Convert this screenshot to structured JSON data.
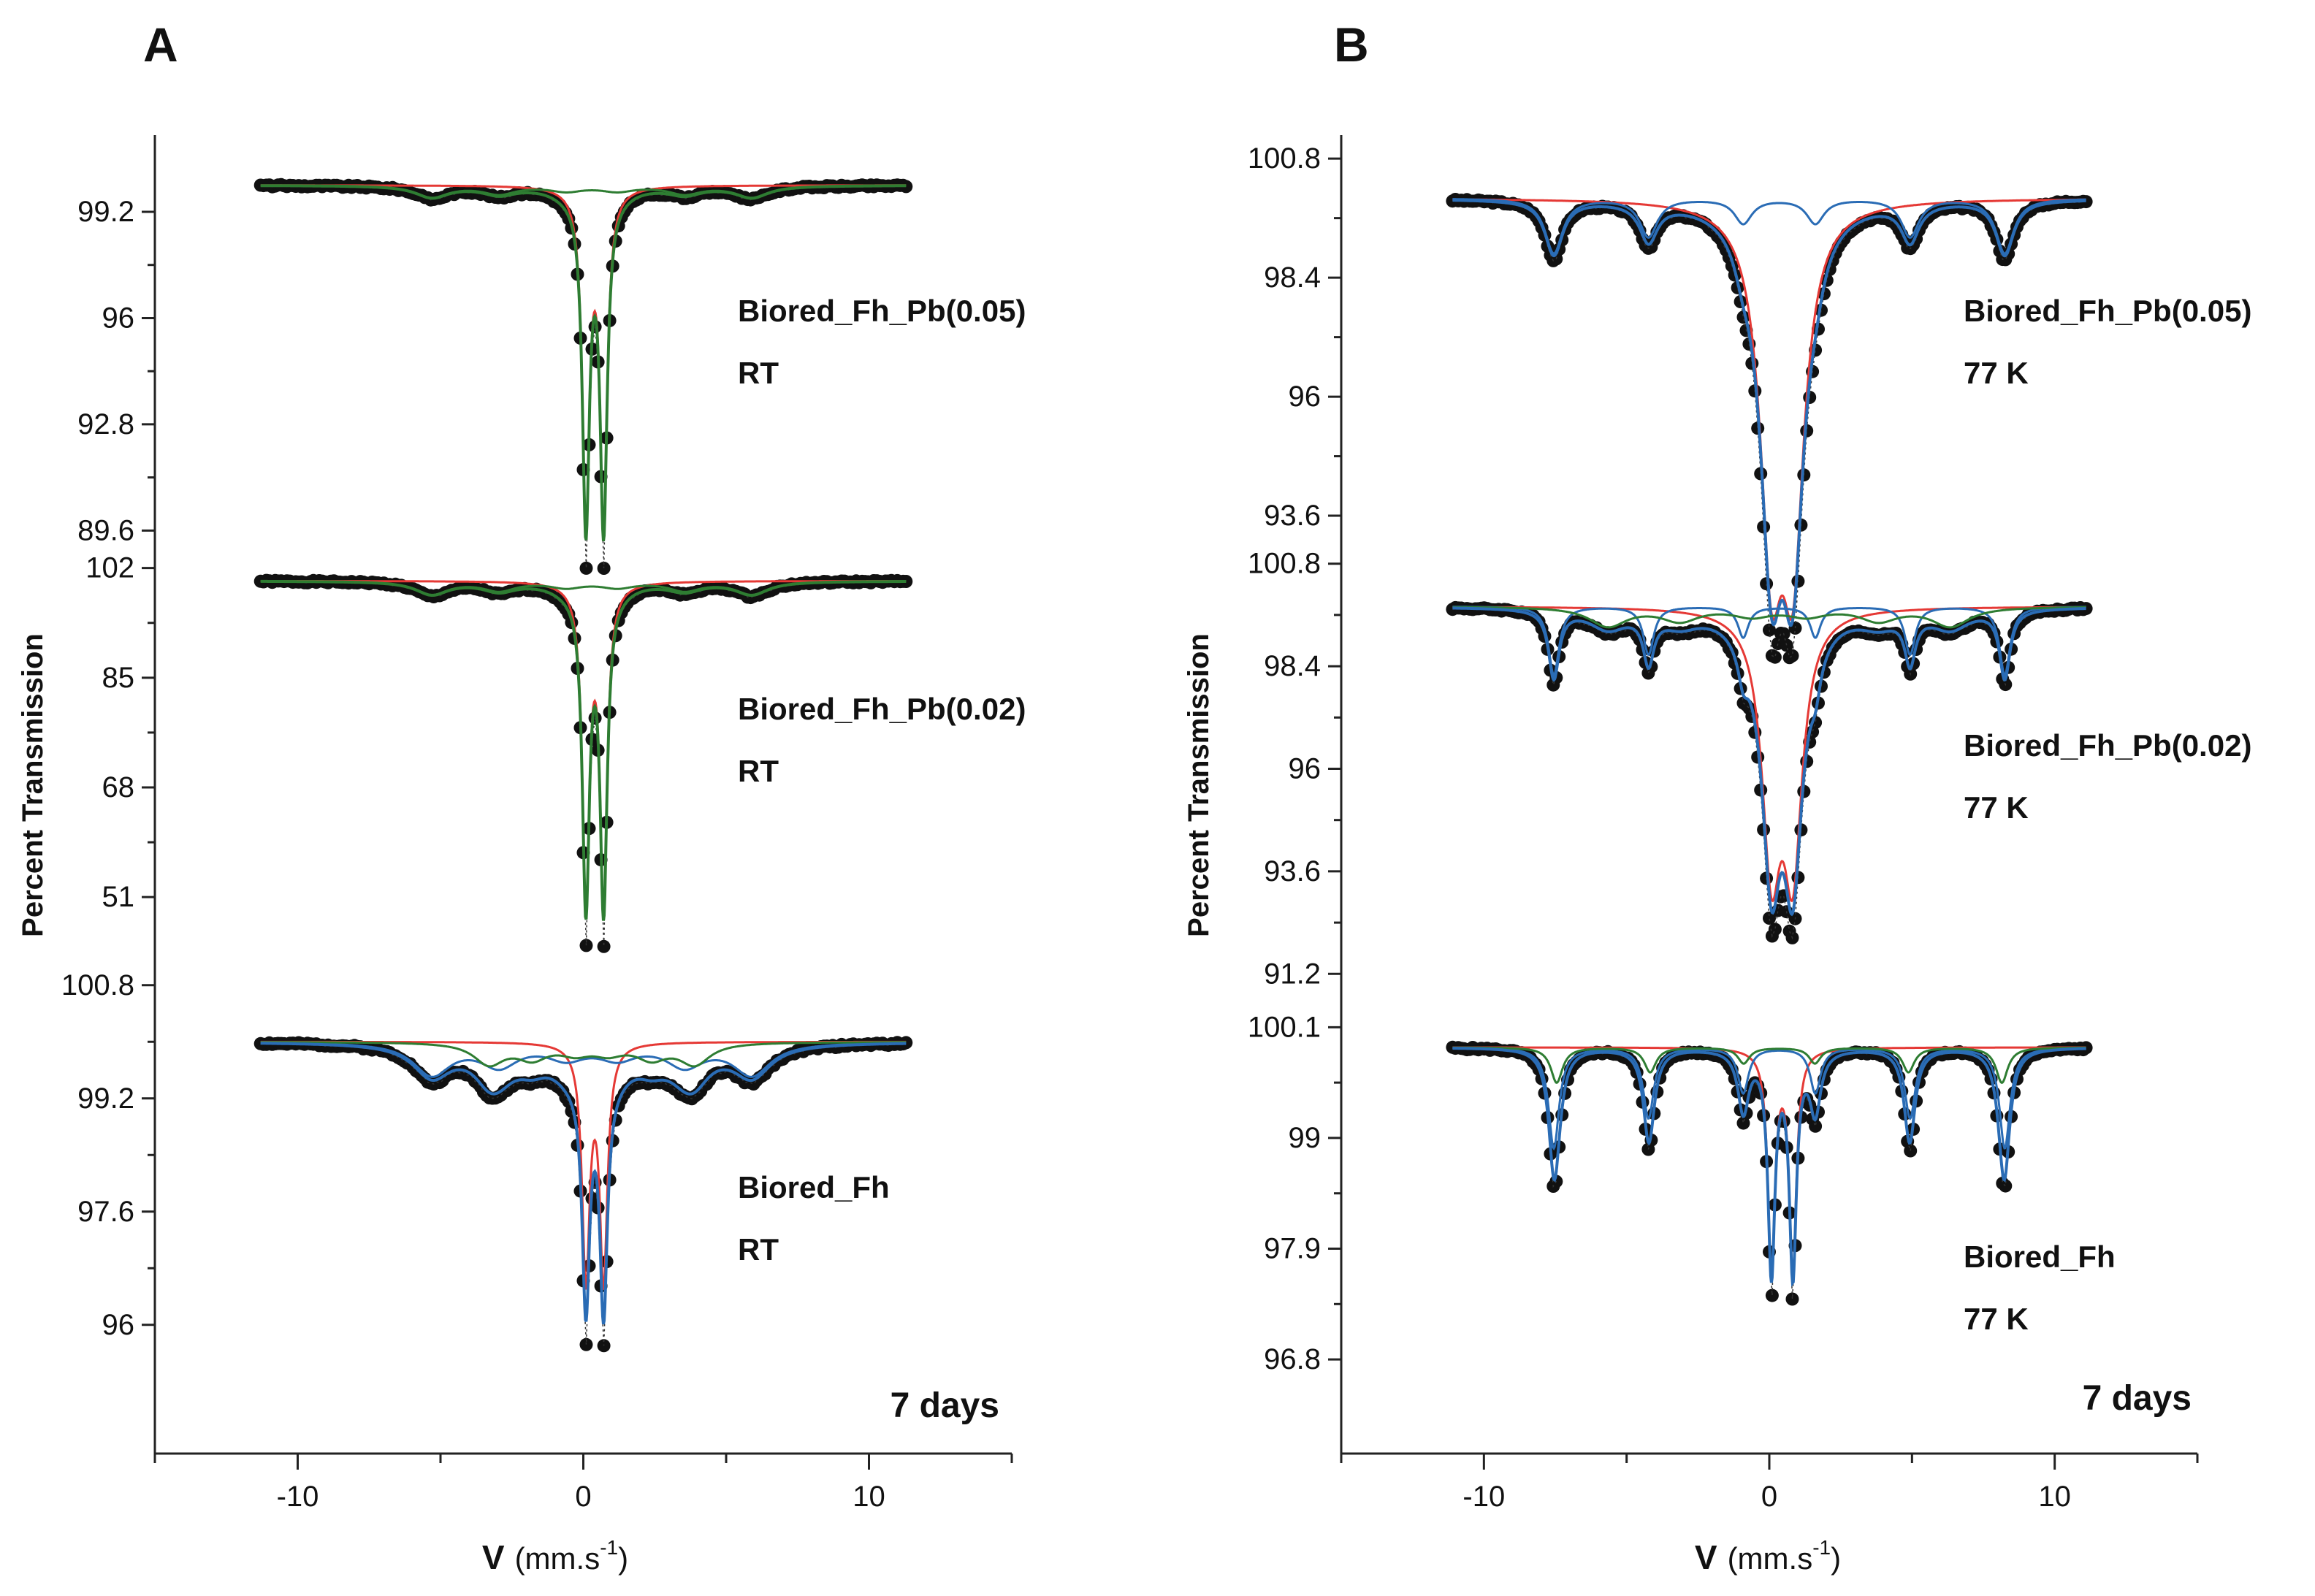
{
  "figure": {
    "panels": [
      {
        "id": "A",
        "letter": "A",
        "ylabel": "Percent Transmission",
        "xlabel_var": "V",
        "xlabel_unit": "(mm.s",
        "xlabel_exp": "-1",
        "xlabel_close": ")",
        "duration_label": "7 days"
      },
      {
        "id": "B",
        "letter": "B",
        "ylabel": "Percent Transmission",
        "xlabel_var": "V",
        "xlabel_unit": "(mm.s",
        "xlabel_exp": "-1",
        "xlabel_close": ")",
        "duration_label": "7 days"
      }
    ],
    "colors": {
      "data_points": "#111111",
      "total_fit_A": "#2e7d32",
      "total_fit_B": "#2a6cb5",
      "doublet": "#e53935",
      "sextet_green": "#2e7d32",
      "sextet_blue": "#2a6cb5"
    }
  },
  "chart_data": [
    {
      "type": "scatter",
      "panel": "A",
      "subtitle": "Biored_Fh_Pb(0.05)",
      "temperature": "RT",
      "xlim": [
        -15,
        15
      ],
      "x_ticks": [
        "-10",
        "0",
        "10"
      ],
      "y_ticks": [
        "99.2",
        "96",
        "92.8",
        "89.6"
      ],
      "ylim": [
        89.3,
        101.4
      ],
      "baseline": 100,
      "velocity_range": [
        -11.3,
        11.3
      ],
      "components": [
        {
          "color": "red",
          "kind": "doublet",
          "center": 0.4,
          "splitting": 0.62,
          "depth": 10.0,
          "width": 0.3
        },
        {
          "color": "green",
          "kind": "sextet",
          "center": 0.3,
          "split_outer": 11.2,
          "depth": 0.35,
          "width": 1.4
        }
      ],
      "total_fit_color": "green"
    },
    {
      "type": "scatter",
      "panel": "A",
      "subtitle": "Biored_Fh_Pb(0.02)",
      "temperature": "RT",
      "xlim": [
        -15,
        15
      ],
      "x_ticks": [
        "-10",
        "0",
        "10"
      ],
      "y_ticks": [
        "102",
        "85",
        "68",
        "51"
      ],
      "ylim": [
        44,
        104
      ],
      "baseline": 100,
      "velocity_range": [
        -11.3,
        11.3
      ],
      "components": [
        {
          "color": "red",
          "kind": "doublet",
          "center": 0.4,
          "splitting": 0.62,
          "depth": 49.0,
          "width": 0.3
        },
        {
          "color": "green",
          "kind": "sextet",
          "center": 0.3,
          "split_outer": 11.2,
          "depth": 2.0,
          "width": 1.4
        }
      ],
      "total_fit_color": "green"
    },
    {
      "type": "scatter",
      "panel": "A",
      "subtitle": "Biored_Fh",
      "temperature": "RT",
      "xlim": [
        -15,
        15
      ],
      "x_ticks": [
        "-10",
        "0",
        "10"
      ],
      "y_ticks": [
        "100.8",
        "99.2",
        "97.6",
        "96"
      ],
      "ylim": [
        94.8,
        101.2
      ],
      "baseline": 100,
      "velocity_range": [
        -11.3,
        11.3
      ],
      "components": [
        {
          "color": "red",
          "kind": "doublet",
          "center": 0.4,
          "splitting": 0.62,
          "depth": 3.3,
          "width": 0.32
        },
        {
          "color": "blue",
          "kind": "sextet",
          "center": 0.3,
          "split_outer": 11.2,
          "depth": 0.45,
          "width": 1.6
        },
        {
          "color": "green",
          "kind": "sextet",
          "center": 0.3,
          "split_outer": 7.2,
          "depth": 0.3,
          "width": 1.3
        }
      ],
      "total_fit_color": "blue"
    },
    {
      "type": "scatter",
      "panel": "B",
      "subtitle": "Biored_Fh_Pb(0.05)",
      "temperature": "77 K",
      "xlim": [
        -15,
        15
      ],
      "x_ticks": [
        "-10",
        "0",
        "10"
      ],
      "y_ticks": [
        "100.8",
        "98.4",
        "96",
        "93.6"
      ],
      "ylim": [
        93.1,
        101.2
      ],
      "baseline": 100,
      "velocity_range": [
        -11.1,
        11.1
      ],
      "components": [
        {
          "color": "red",
          "kind": "doublet",
          "center": 0.45,
          "splitting": 0.75,
          "depth": 6.5,
          "width": 0.95
        },
        {
          "color": "blue",
          "kind": "sextet",
          "center": 0.35,
          "split_outer": 15.8,
          "depth": 1.1,
          "width": 0.75
        }
      ],
      "total_fit_color": "blue"
    },
    {
      "type": "scatter",
      "panel": "B",
      "subtitle": "Biored_Fh_Pb(0.02)",
      "temperature": "77 K",
      "xlim": [
        -15,
        15
      ],
      "x_ticks": [
        "-10",
        "0",
        "10"
      ],
      "y_ticks": [
        "100.8",
        "98.4",
        "96",
        "93.6",
        "91.2"
      ],
      "ylim": [
        91.0,
        101.0
      ],
      "baseline": 99.8,
      "velocity_range": [
        -11.1,
        11.1
      ],
      "components": [
        {
          "color": "red",
          "kind": "doublet",
          "center": 0.45,
          "splitting": 0.75,
          "depth": 5.6,
          "width": 0.8
        },
        {
          "color": "blue",
          "kind": "sextet",
          "center": 0.35,
          "split_outer": 15.8,
          "depth": 1.6,
          "width": 0.45
        },
        {
          "color": "green",
          "kind": "sextet",
          "center": 0.35,
          "split_outer": 12.0,
          "depth": 0.45,
          "width": 1.6
        }
      ],
      "total_fit_color": "blue"
    },
    {
      "type": "scatter",
      "panel": "B",
      "subtitle": "Biored_Fh",
      "temperature": "77 K",
      "xlim": [
        -15,
        15
      ],
      "x_ticks": [
        "-10",
        "0",
        "10"
      ],
      "y_ticks": [
        "100.1",
        "99",
        "97.9",
        "96.8"
      ],
      "ylim": [
        96.3,
        100.4
      ],
      "baseline": 99.9,
      "velocity_range": [
        -11.1,
        11.1
      ],
      "components": [
        {
          "color": "red",
          "kind": "doublet",
          "center": 0.45,
          "splitting": 0.75,
          "depth": 2.2,
          "width": 0.3
        },
        {
          "color": "blue",
          "kind": "sextet",
          "center": 0.35,
          "split_outer": 15.8,
          "depth": 1.0,
          "width": 0.45
        },
        {
          "color": "green",
          "kind": "sextet",
          "center": 0.35,
          "split_outer": 15.6,
          "depth": 0.35,
          "width": 0.5
        }
      ],
      "total_fit_color": "blue"
    }
  ]
}
